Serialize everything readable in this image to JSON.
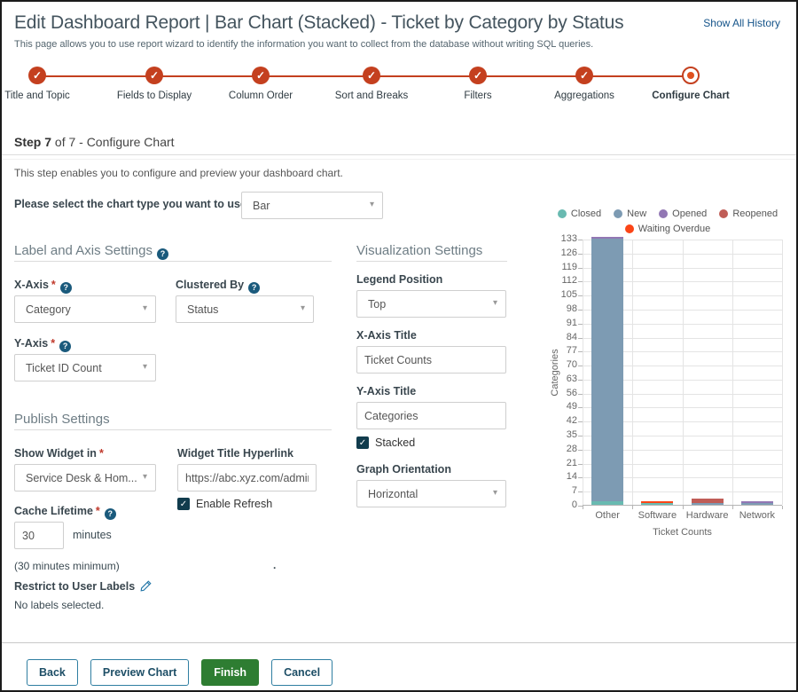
{
  "header": {
    "title": "Edit Dashboard Report | Bar Chart (Stacked) - Ticket by Category by Status",
    "history_link": "Show All History",
    "subtitle": "This page allows you to use report wizard to identify the information you want to collect from the database without writing SQL queries."
  },
  "stepper": {
    "steps": [
      {
        "label": "Title and Topic",
        "state": "done"
      },
      {
        "label": "Fields to Display",
        "state": "done"
      },
      {
        "label": "Column Order",
        "state": "done"
      },
      {
        "label": "Sort and Breaks",
        "state": "done"
      },
      {
        "label": "Filters",
        "state": "done"
      },
      {
        "label": "Aggregations",
        "state": "done"
      },
      {
        "label": "Configure Chart",
        "state": "current"
      }
    ]
  },
  "step_bar": {
    "title_bold": "Step 7",
    "title_rest": " of 7 - Configure Chart",
    "description": "This step enables you to configure and preview your dashboard chart."
  },
  "chart_type": {
    "label": "Please select the chart type you want to use",
    "value": "Bar"
  },
  "label_axis": {
    "section_title": "Label and Axis Settings",
    "x_axis": {
      "label": "X-Axis",
      "value": "Category"
    },
    "clustered_by": {
      "label": "Clustered By",
      "value": "Status"
    },
    "y_axis": {
      "label": "Y-Axis",
      "value": "Ticket ID Count"
    }
  },
  "visualization": {
    "section_title": "Visualization Settings",
    "legend_position": {
      "label": "Legend Position",
      "value": "Top"
    },
    "x_axis_title": {
      "label": "X-Axis Title",
      "value": "Ticket Counts"
    },
    "y_axis_title": {
      "label": "Y-Axis Title",
      "value": "Categories"
    },
    "stacked": {
      "label": "Stacked",
      "checked": true
    },
    "graph_orientation": {
      "label": "Graph Orientation",
      "value": "Horizontal"
    }
  },
  "publish": {
    "section_title": "Publish Settings",
    "show_widget": {
      "label": "Show Widget in",
      "value": "Service Desk & Hom..."
    },
    "widget_hyperlink": {
      "label": "Widget Title Hyperlink",
      "value": "https://abc.xyz.com/admir"
    },
    "enable_refresh": {
      "label": "Enable Refresh",
      "checked": true
    },
    "cache_lifetime": {
      "label": "Cache Lifetime",
      "value": "30",
      "unit": "minutes",
      "hint": "(30 minutes minimum)"
    },
    "restrict_labels": {
      "label": "Restrict to User Labels",
      "status": "No labels selected."
    }
  },
  "misc": {
    "dot": "."
  },
  "chart_data": {
    "type": "bar",
    "stacked": true,
    "orientation": "vertical",
    "title": "",
    "xlabel": "Ticket Counts",
    "ylabel": "Categories",
    "categories": [
      "Other",
      "Software",
      "Hardware",
      "Network"
    ],
    "series": [
      {
        "name": "Closed",
        "color": "#69bab1",
        "values": [
          2,
          1,
          0,
          0
        ]
      },
      {
        "name": "New",
        "color": "#7d9bb3",
        "values": [
          131,
          0,
          1,
          1
        ]
      },
      {
        "name": "Opened",
        "color": "#9277b4",
        "values": [
          1,
          0,
          0,
          1
        ]
      },
      {
        "name": "Reopened",
        "color": "#c05d57",
        "values": [
          0,
          0,
          2,
          0
        ]
      },
      {
        "name": "Waiting Overdue",
        "color": "#fb4517",
        "values": [
          0,
          1,
          0,
          0
        ]
      }
    ],
    "ylim": [
      0,
      133
    ],
    "ytick_step": 7,
    "legend_position": "top",
    "grid": true
  },
  "footer": {
    "back": "Back",
    "preview": "Preview Chart",
    "finish": "Finish",
    "cancel": "Cancel"
  },
  "colors": {
    "stepper_accent": "#c4401f",
    "link": "#15548a",
    "checkbox": "#113c4d",
    "help_icon": "#1a5a7c",
    "finish_green": "#2e7d32",
    "button_outline": "#2f7ea1"
  }
}
